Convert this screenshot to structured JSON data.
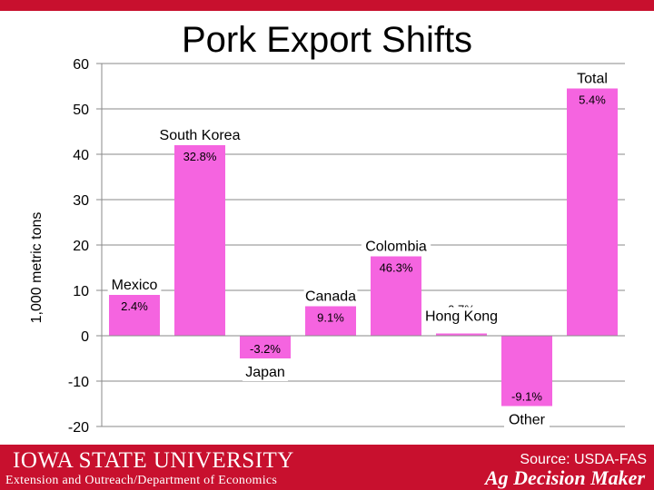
{
  "header": {
    "title": "Pork Export Shifts"
  },
  "footer": {
    "university": "IOWA STATE UNIVERSITY",
    "department": "Extension and Outreach/Department of Economics",
    "source": "Source: USDA-FAS",
    "brand": "Ag Decision Maker"
  },
  "colors": {
    "bar": "#f564e0",
    "accent": "#c8102e"
  },
  "chart_data": {
    "type": "bar",
    "title": "Pork Export Shifts",
    "ylabel": "1,000 metric tons",
    "xlabel": "",
    "ylim": [
      -20,
      60
    ],
    "yticks": [
      60,
      50,
      40,
      30,
      20,
      10,
      0,
      -10,
      -20
    ],
    "grid": true,
    "categories": [
      "Mexico",
      "South Korea",
      "Japan",
      "Canada",
      "Colombia",
      "Hong Kong",
      "Other",
      "Total"
    ],
    "values": [
      9,
      42,
      -5,
      6.5,
      17.5,
      0.5,
      -15.5,
      54.5
    ],
    "data_labels": [
      "2.4%",
      "32.8%",
      "-3.2%",
      "9.1%",
      "46.3%",
      "0.7%",
      "-9.1%",
      "5.4%"
    ],
    "source": "Source: USDA-FAS"
  }
}
